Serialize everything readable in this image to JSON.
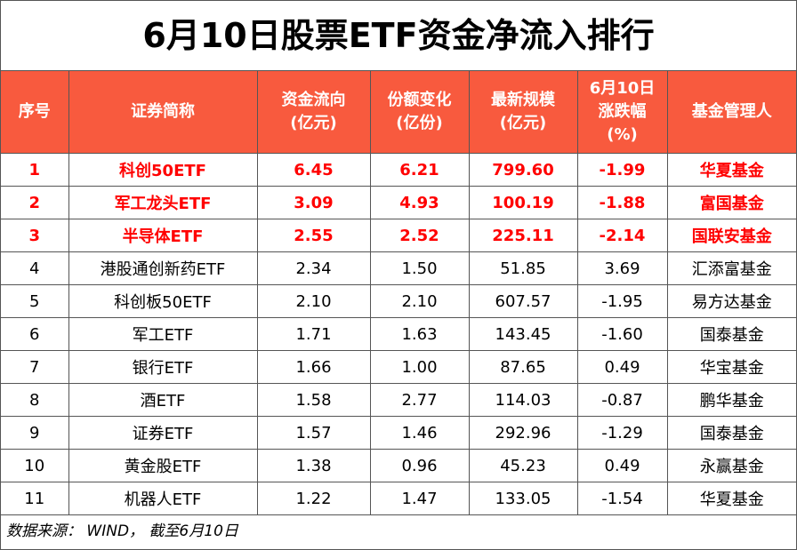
{
  "title": "6月10日股票ETF资金净流入排行",
  "headers": [
    [
      "序号"
    ],
    [
      "证券简称"
    ],
    [
      "资金流向",
      "(亿元)"
    ],
    [
      "份额变化",
      "(亿份)"
    ],
    [
      "最新规模",
      "(亿元)"
    ],
    [
      "6月10日",
      "涨跌幅",
      "(%)"
    ],
    [
      "基金管理人"
    ]
  ],
  "rows": [
    {
      "rank": "1",
      "name": "科创50ETF",
      "flow": "6.45",
      "share": "6.21",
      "scale": "799.60",
      "change": "-1.99",
      "manager": "华夏基金",
      "highlight": true
    },
    {
      "rank": "2",
      "name": "军工龙头ETF",
      "flow": "3.09",
      "share": "4.93",
      "scale": "100.19",
      "change": "-1.88",
      "manager": "富国基金",
      "highlight": true
    },
    {
      "rank": "3",
      "name": "半导体ETF",
      "flow": "2.55",
      "share": "2.52",
      "scale": "225.11",
      "change": "-2.14",
      "manager": "国联安基金",
      "highlight": true
    },
    {
      "rank": "4",
      "name": "港股通创新药ETF",
      "flow": "2.34",
      "share": "1.50",
      "scale": "51.85",
      "change": "3.69",
      "manager": "汇添富基金",
      "highlight": false
    },
    {
      "rank": "5",
      "name": "科创板50ETF",
      "flow": "2.10",
      "share": "2.10",
      "scale": "607.57",
      "change": "-1.95",
      "manager": "易方达基金",
      "highlight": false
    },
    {
      "rank": "6",
      "name": "军工ETF",
      "flow": "1.71",
      "share": "1.63",
      "scale": "143.45",
      "change": "-1.60",
      "manager": "国泰基金",
      "highlight": false
    },
    {
      "rank": "7",
      "name": "银行ETF",
      "flow": "1.66",
      "share": "1.00",
      "scale": "87.65",
      "change": "0.49",
      "manager": "华宝基金",
      "highlight": false
    },
    {
      "rank": "8",
      "name": "酒ETF",
      "flow": "1.58",
      "share": "2.77",
      "scale": "114.03",
      "change": "-0.87",
      "manager": "鹏华基金",
      "highlight": false
    },
    {
      "rank": "9",
      "name": "证券ETF",
      "flow": "1.57",
      "share": "1.46",
      "scale": "292.96",
      "change": "-1.29",
      "manager": "国泰基金",
      "highlight": false
    },
    {
      "rank": "10",
      "name": "黄金股ETF",
      "flow": "1.38",
      "share": "0.96",
      "scale": "45.23",
      "change": "0.49",
      "manager": "永赢基金",
      "highlight": false
    },
    {
      "rank": "11",
      "name": "机器人ETF",
      "flow": "1.22",
      "share": "1.47",
      "scale": "133.05",
      "change": "-1.54",
      "manager": "华夏基金",
      "highlight": false
    }
  ],
  "source": "数据来源： WIND， 截至6月10日",
  "colors": {
    "header_bg": "#f85a3e",
    "header_text": "#ffffff",
    "highlight_text": "#ff0000"
  }
}
